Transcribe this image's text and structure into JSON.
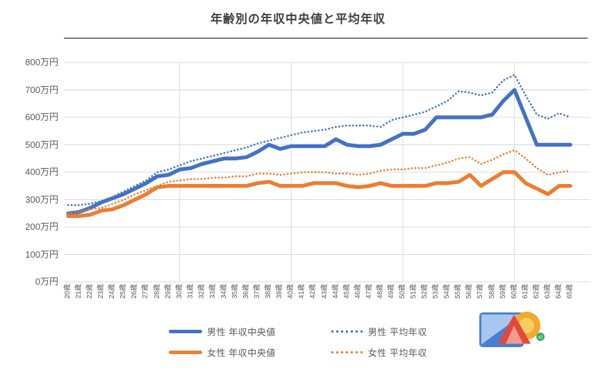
{
  "chart_data": {
    "type": "line",
    "title": "年齢別の年収中央値と平均年収",
    "ylim": [
      0,
      800
    ],
    "y_tick_step": 100,
    "y_ticks": [
      "0万円",
      "100万円",
      "200万円",
      "300万円",
      "400万円",
      "500万円",
      "600万円",
      "700万円",
      "800万円"
    ],
    "categories": [
      "20歳",
      "21歳",
      "22歳",
      "23歳",
      "24歳",
      "25歳",
      "26歳",
      "27歳",
      "28歳",
      "29歳",
      "30歳",
      "31歳",
      "32歳",
      "33歳",
      "34歳",
      "35歳",
      "36歳",
      "37歳",
      "38歳",
      "39歳",
      "40歳",
      "41歳",
      "42歳",
      "43歳",
      "44歳",
      "45歳",
      "46歳",
      "47歳",
      "48歳",
      "49歳",
      "50歳",
      "51歳",
      "52歳",
      "53歳",
      "54歳",
      "55歳",
      "56歳",
      "57歳",
      "58歳",
      "59歳",
      "60歳",
      "61歳",
      "62歳",
      "63歳",
      "64歳",
      "65歳"
    ],
    "vertical_gridline_categories": [
      "30歳",
      "40歳",
      "50歳",
      "60歳"
    ],
    "grid_color": "#d9d9d9",
    "legend_position": "bottom",
    "series": [
      {
        "name": "男性 年収中央値",
        "style": "solid",
        "color": "#4472c4",
        "values": [
          250,
          255,
          270,
          290,
          305,
          320,
          340,
          360,
          385,
          390,
          410,
          415,
          430,
          440,
          450,
          450,
          455,
          475,
          500,
          485,
          495,
          495,
          495,
          495,
          520,
          500,
          495,
          495,
          500,
          520,
          540,
          540,
          555,
          600,
          600,
          600,
          600,
          600,
          610,
          660,
          700,
          600,
          500,
          500,
          500,
          500
        ]
      },
      {
        "name": "男性 平均年収",
        "style": "dotted",
        "color": "#4472c4",
        "values": [
          280,
          280,
          285,
          295,
          310,
          330,
          350,
          370,
          400,
          410,
          425,
          440,
          450,
          460,
          470,
          480,
          490,
          505,
          515,
          525,
          535,
          545,
          550,
          555,
          565,
          570,
          570,
          570,
          565,
          590,
          600,
          610,
          620,
          640,
          660,
          695,
          690,
          680,
          690,
          735,
          755,
          680,
          610,
          595,
          615,
          600
        ]
      },
      {
        "name": "女性 年収中央値",
        "style": "solid",
        "color": "#ed7d31",
        "values": [
          240,
          240,
          245,
          260,
          265,
          280,
          300,
          320,
          345,
          350,
          350,
          350,
          350,
          350,
          350,
          350,
          350,
          360,
          365,
          350,
          350,
          350,
          360,
          360,
          360,
          350,
          345,
          350,
          360,
          350,
          350,
          350,
          350,
          360,
          360,
          365,
          390,
          350,
          375,
          400,
          400,
          360,
          340,
          320,
          350,
          350
        ]
      },
      {
        "name": "女性 平均年収",
        "style": "dotted",
        "color": "#ed7d31",
        "values": [
          250,
          255,
          265,
          270,
          285,
          300,
          320,
          335,
          350,
          365,
          370,
          375,
          375,
          380,
          380,
          385,
          385,
          395,
          395,
          390,
          395,
          400,
          400,
          400,
          395,
          395,
          390,
          395,
          405,
          410,
          410,
          415,
          415,
          425,
          435,
          450,
          455,
          430,
          445,
          465,
          480,
          450,
          415,
          390,
          400,
          405
        ]
      }
    ]
  },
  "logo": {
    "badge_text": "x2",
    "colors": {
      "square_dark": "#4a7fd0",
      "square_light": "#a8c6ef",
      "mountain_red": "#e2483d",
      "mountain_pink": "#f19a90",
      "sun_outer": "#f4a82c",
      "sun_inner": "#f8ce63",
      "badge_green": "#3fae68"
    }
  }
}
